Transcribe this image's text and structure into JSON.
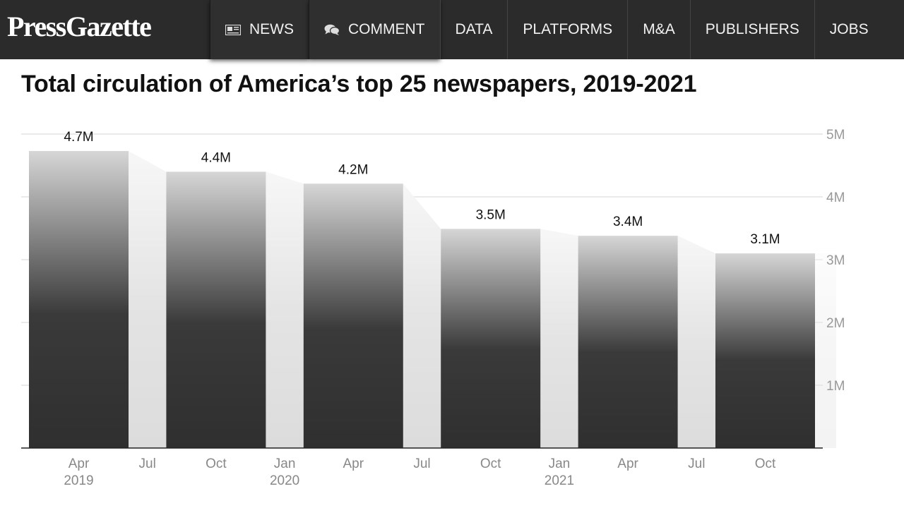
{
  "header": {
    "logo": "PressGazette",
    "nav": [
      {
        "label": "NEWS",
        "icon": "newspaper-icon"
      },
      {
        "label": "COMMENT",
        "icon": "speech-bubbles-icon"
      },
      {
        "label": "DATA"
      },
      {
        "label": "PLATFORMS"
      },
      {
        "label": "M&A"
      },
      {
        "label": "PUBLISHERS"
      },
      {
        "label": "JOBS"
      }
    ]
  },
  "chart_data": {
    "type": "bar",
    "title": "Total circulation of America’s top 25 newspapers, 2019-2021",
    "categories": [
      "Apr 2019",
      "Oct 2019",
      "Apr 2020",
      "Oct 2020",
      "Apr 2021",
      "Oct 2021"
    ],
    "values": [
      4.73,
      4.4,
      4.21,
      3.49,
      3.38,
      3.1
    ],
    "data_labels": [
      "4.7M",
      "4.4M",
      "4.2M",
      "3.5M",
      "3.4M",
      "3.1M"
    ],
    "x_ticks": [
      {
        "label": "Apr",
        "sub": "2019"
      },
      {
        "label": "Jul",
        "sub": ""
      },
      {
        "label": "Oct",
        "sub": ""
      },
      {
        "label": "Jan",
        "sub": "2020"
      },
      {
        "label": "Apr",
        "sub": ""
      },
      {
        "label": "Jul",
        "sub": ""
      },
      {
        "label": "Oct",
        "sub": ""
      },
      {
        "label": "Jan",
        "sub": "2021"
      },
      {
        "label": "Apr",
        "sub": ""
      },
      {
        "label": "Jul",
        "sub": ""
      },
      {
        "label": "Oct",
        "sub": ""
      }
    ],
    "y_ticks": [
      "1M",
      "2M",
      "3M",
      "4M",
      "5M"
    ],
    "y_tick_values": [
      1,
      2,
      3,
      4,
      5
    ],
    "ylim": [
      0,
      5
    ],
    "y_axis_side": "right",
    "grid": true,
    "legend": "none",
    "colors": {
      "bar_dark": "#2f2f2f",
      "bar_light": "#d6d6d6",
      "band": "#dedede",
      "grid": "#dddddd",
      "axis": "#222222"
    }
  }
}
